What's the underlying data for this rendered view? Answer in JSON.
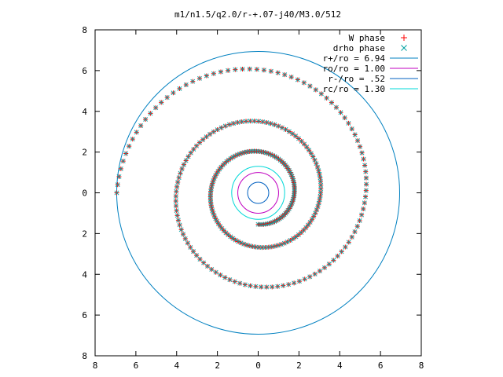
{
  "chart_data": {
    "type": "scatter",
    "title": "m1/n1.5/q2.0/r-+.07-j40/M3.0/512",
    "xlabel": "",
    "ylabel": "",
    "xlim": [
      -8,
      8
    ],
    "ylim": [
      -8,
      8
    ],
    "x_ticks": [
      -8,
      -6,
      -4,
      -2,
      0,
      2,
      4,
      6,
      8
    ],
    "y_ticks": [
      -8,
      -6,
      -4,
      -2,
      0,
      2,
      4,
      6,
      8
    ],
    "x_tick_labels": [
      "8",
      "6",
      "4",
      "2",
      "0",
      "2",
      "4",
      "6",
      "8"
    ],
    "y_tick_labels": [
      "8",
      "6",
      "4",
      "2",
      "0",
      "2",
      "4",
      "6",
      "8"
    ],
    "grid": false,
    "legend_position": "top-right",
    "spiral": {
      "r_start": 1.55,
      "turns": 2.75,
      "r_end": 6.94,
      "point_count": 300
    },
    "series": [
      {
        "name": "W phase",
        "kind": "points",
        "marker": "+",
        "color": "#ff0000"
      },
      {
        "name": "drho phase",
        "kind": "points",
        "marker": "x",
        "color": "#00a0a0"
      },
      {
        "name": "r+/ro = 6.94",
        "kind": "circle",
        "radius": 6.94,
        "color": "#0080c0"
      },
      {
        "name": "ro/ro = 1.00",
        "kind": "circle",
        "radius": 1.0,
        "color": "#c000c0"
      },
      {
        "name": "r-/ro = .52",
        "kind": "circle",
        "radius": 0.52,
        "color": "#0060c0"
      },
      {
        "name": "rc/ro = 1.30",
        "kind": "circle",
        "radius": 1.3,
        "color": "#00d8d8"
      }
    ]
  }
}
